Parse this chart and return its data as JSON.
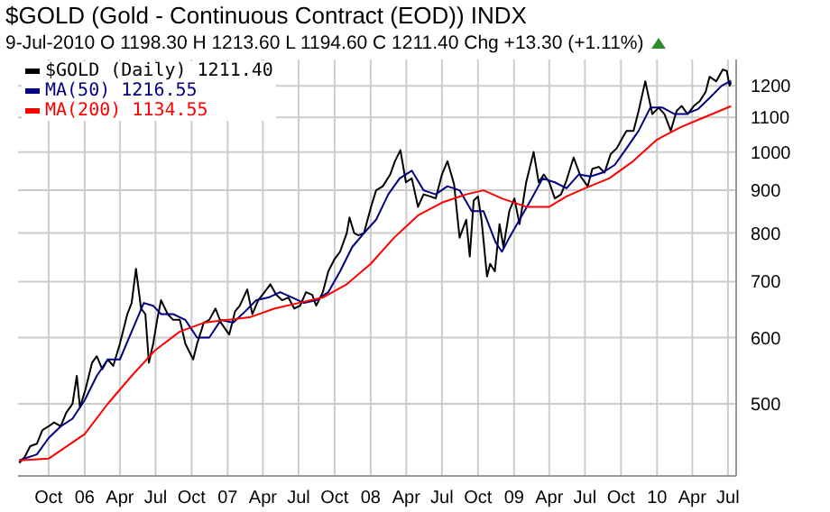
{
  "chart_data": {
    "type": "line",
    "title": "$GOLD (Gold - Continuous Contract (EOD)) INDX",
    "subtitle": "9-Jul-2010   O 1198.30  H 1213.60  L 1194.60  C 1211.40  Chg +13.30 (+1.11%)",
    "log": "y",
    "grid": true,
    "legend": "top left",
    "marker": "none",
    "line_style": "solid",
    "xlim": [
      "2005-07-15",
      "2010-07-22"
    ],
    "ylim": [
      410,
      1290
    ],
    "yticks": [
      500,
      600,
      700,
      800,
      900,
      1000,
      1100,
      1200
    ],
    "xticks": [
      {
        "value": "2005-10-01",
        "label": "Oct"
      },
      {
        "value": "2006-01-01",
        "label": "06"
      },
      {
        "value": "2006-04-01",
        "label": "Apr"
      },
      {
        "value": "2006-07-01",
        "label": "Jul"
      },
      {
        "value": "2006-10-01",
        "label": "Oct"
      },
      {
        "value": "2007-01-01",
        "label": "07"
      },
      {
        "value": "2007-04-01",
        "label": "Apr"
      },
      {
        "value": "2007-07-01",
        "label": "Jul"
      },
      {
        "value": "2007-10-01",
        "label": "Oct"
      },
      {
        "value": "2008-01-01",
        "label": "08"
      },
      {
        "value": "2008-04-01",
        "label": "Apr"
      },
      {
        "value": "2008-07-01",
        "label": "Jul"
      },
      {
        "value": "2008-10-01",
        "label": "Oct"
      },
      {
        "value": "2009-01-01",
        "label": "09"
      },
      {
        "value": "2009-04-01",
        "label": "Apr"
      },
      {
        "value": "2009-07-01",
        "label": "Jul"
      },
      {
        "value": "2009-10-01",
        "label": "Oct"
      },
      {
        "value": "2010-01-01",
        "label": "10"
      },
      {
        "value": "2010-04-01",
        "label": "Apr"
      },
      {
        "value": "2010-07-01",
        "label": "Jul"
      }
    ],
    "series": [
      {
        "name": "$GOLD (Daily) 1211.40",
        "color": "#000000",
        "x": [
          "2005-07-18",
          "2005-08-01",
          "2005-08-15",
          "2005-09-01",
          "2005-09-15",
          "2005-10-01",
          "2005-10-15",
          "2005-11-01",
          "2005-11-15",
          "2005-12-01",
          "2005-12-12",
          "2005-12-20",
          "2006-01-03",
          "2006-01-20",
          "2006-02-01",
          "2006-02-15",
          "2006-03-01",
          "2006-03-15",
          "2006-04-01",
          "2006-04-20",
          "2006-05-01",
          "2006-05-12",
          "2006-05-25",
          "2006-06-05",
          "2006-06-14",
          "2006-06-25",
          "2006-07-05",
          "2006-07-15",
          "2006-08-01",
          "2006-08-15",
          "2006-09-01",
          "2006-09-15",
          "2006-10-05",
          "2006-10-15",
          "2006-11-01",
          "2006-11-15",
          "2006-12-01",
          "2006-12-15",
          "2007-01-05",
          "2007-01-20",
          "2007-02-01",
          "2007-02-20",
          "2007-03-05",
          "2007-03-20",
          "2007-04-05",
          "2007-04-20",
          "2007-05-05",
          "2007-05-20",
          "2007-06-05",
          "2007-06-20",
          "2007-07-05",
          "2007-07-20",
          "2007-08-05",
          "2007-08-15",
          "2007-09-01",
          "2007-09-15",
          "2007-10-01",
          "2007-10-15",
          "2007-11-01",
          "2007-11-08",
          "2007-11-20",
          "2007-12-01",
          "2007-12-15",
          "2008-01-02",
          "2008-01-15",
          "2008-02-01",
          "2008-02-20",
          "2008-03-03",
          "2008-03-17",
          "2008-03-31",
          "2008-04-15",
          "2008-05-01",
          "2008-05-15",
          "2008-06-01",
          "2008-06-15",
          "2008-07-01",
          "2008-07-15",
          "2008-08-01",
          "2008-08-15",
          "2008-09-01",
          "2008-09-10",
          "2008-09-20",
          "2008-10-01",
          "2008-10-10",
          "2008-10-24",
          "2008-11-01",
          "2008-11-13",
          "2008-11-25",
          "2008-12-05",
          "2008-12-20",
          "2009-01-02",
          "2009-01-15",
          "2009-02-01",
          "2009-02-20",
          "2009-03-05",
          "2009-03-18",
          "2009-04-01",
          "2009-04-15",
          "2009-05-01",
          "2009-05-15",
          "2009-06-02",
          "2009-06-20",
          "2009-07-08",
          "2009-07-20",
          "2009-08-05",
          "2009-08-20",
          "2009-09-05",
          "2009-09-20",
          "2009-10-05",
          "2009-10-15",
          "2009-11-02",
          "2009-11-15",
          "2009-12-02",
          "2009-12-20",
          "2010-01-05",
          "2010-01-20",
          "2010-02-05",
          "2010-02-20",
          "2010-03-05",
          "2010-03-20",
          "2010-04-05",
          "2010-04-20",
          "2010-05-05",
          "2010-05-15",
          "2010-06-01",
          "2010-06-18",
          "2010-06-28",
          "2010-07-05",
          "2010-07-09"
        ],
        "values": [
          425,
          432,
          445,
          448,
          465,
          470,
          475,
          470,
          488,
          500,
          540,
          495,
          520,
          560,
          570,
          550,
          565,
          555,
          590,
          640,
          660,
          725,
          650,
          640,
          560,
          590,
          630,
          665,
          640,
          630,
          630,
          590,
          565,
          590,
          625,
          630,
          650,
          625,
          605,
          645,
          655,
          685,
          640,
          665,
          680,
          695,
          675,
          665,
          670,
          650,
          655,
          680,
          675,
          655,
          680,
          720,
          745,
          760,
          800,
          835,
          800,
          795,
          800,
          860,
          900,
          910,
          940,
          975,
          1005,
          920,
          930,
          860,
          890,
          885,
          880,
          940,
          975,
          915,
          790,
          830,
          750,
          875,
          885,
          830,
          710,
          735,
          720,
          820,
          770,
          850,
          880,
          820,
          920,
          1000,
          920,
          940,
          920,
          880,
          890,
          925,
          985,
          935,
          910,
          955,
          960,
          945,
          995,
          1010,
          1040,
          1060,
          1060,
          1120,
          1215,
          1110,
          1130,
          1110,
          1060,
          1120,
          1135,
          1110,
          1135,
          1150,
          1180,
          1230,
          1215,
          1255,
          1250,
          1200,
          1211.4
        ]
      },
      {
        "name": "MA(50) 1216.55",
        "color": "#000080",
        "x": [
          "2005-07-18",
          "2005-09-01",
          "2005-10-01",
          "2005-11-01",
          "2005-12-01",
          "2006-01-01",
          "2006-02-01",
          "2006-03-01",
          "2006-04-01",
          "2006-05-01",
          "2006-06-01",
          "2006-06-25",
          "2006-07-15",
          "2006-08-15",
          "2006-09-15",
          "2006-10-15",
          "2006-11-15",
          "2006-12-15",
          "2007-01-15",
          "2007-02-15",
          "2007-03-15",
          "2007-04-15",
          "2007-05-15",
          "2007-06-15",
          "2007-07-15",
          "2007-08-15",
          "2007-09-15",
          "2007-10-15",
          "2007-11-15",
          "2007-12-15",
          "2008-01-15",
          "2008-02-15",
          "2008-03-15",
          "2008-04-15",
          "2008-05-15",
          "2008-06-15",
          "2008-07-15",
          "2008-08-15",
          "2008-09-15",
          "2008-10-15",
          "2008-11-15",
          "2008-12-01",
          "2008-12-20",
          "2009-01-15",
          "2009-02-15",
          "2009-03-15",
          "2009-04-15",
          "2009-05-15",
          "2009-06-15",
          "2009-07-15",
          "2009-08-15",
          "2009-09-15",
          "2009-10-15",
          "2009-11-15",
          "2009-12-15",
          "2010-01-15",
          "2010-02-15",
          "2010-03-15",
          "2010-04-15",
          "2010-05-15",
          "2010-06-15",
          "2010-07-09"
        ],
        "values": [
          428,
          435,
          455,
          470,
          480,
          505,
          540,
          565,
          565,
          610,
          660,
          655,
          640,
          640,
          630,
          600,
          600,
          630,
          625,
          645,
          665,
          670,
          680,
          670,
          660,
          665,
          680,
          720,
          770,
          800,
          830,
          890,
          930,
          950,
          900,
          890,
          910,
          900,
          850,
          850,
          780,
          760,
          790,
          830,
          880,
          930,
          920,
          905,
          940,
          935,
          945,
          965,
          1010,
          1060,
          1130,
          1130,
          1110,
          1110,
          1125,
          1160,
          1200,
          1216.55
        ]
      },
      {
        "name": "MA(200) 1134.55",
        "color": "#ff0000",
        "x": [
          "2005-07-18",
          "2005-10-01",
          "2006-01-01",
          "2006-03-01",
          "2006-05-01",
          "2006-07-01",
          "2006-09-01",
          "2006-11-01",
          "2007-01-01",
          "2007-03-01",
          "2007-05-01",
          "2007-07-01",
          "2007-09-01",
          "2007-11-01",
          "2008-01-01",
          "2008-03-01",
          "2008-05-01",
          "2008-07-01",
          "2008-09-01",
          "2008-10-15",
          "2008-12-01",
          "2009-02-01",
          "2009-04-01",
          "2009-05-15",
          "2009-07-01",
          "2009-09-01",
          "2009-11-01",
          "2010-01-01",
          "2010-03-01",
          "2010-05-01",
          "2010-07-09"
        ],
        "values": [
          428,
          430,
          460,
          500,
          540,
          580,
          610,
          625,
          630,
          635,
          650,
          660,
          670,
          695,
          735,
          790,
          840,
          870,
          890,
          900,
          880,
          860,
          860,
          885,
          905,
          930,
          975,
          1035,
          1070,
          1100,
          1134.55
        ]
      }
    ]
  }
}
